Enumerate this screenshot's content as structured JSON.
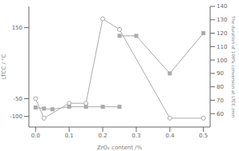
{
  "chart_data": {
    "type": "line",
    "xlabel": "ZrO₂ content /%",
    "ylabel": "LTCC / °C",
    "y2label": "The duration of 100% conversion at LTCC /min",
    "xlim": [
      -0.02,
      0.52
    ],
    "xticks": [
      {
        "value": 0.0,
        "label": "0.0"
      },
      {
        "value": 0.1,
        "label": "0.1"
      },
      {
        "value": 0.2,
        "label": "0.2"
      },
      {
        "value": 0.3,
        "label": "0.3"
      },
      {
        "value": 0.4,
        "label": "0.4"
      },
      {
        "value": 0.5,
        "label": "0.5"
      }
    ],
    "ylim": [
      -130,
      210
    ],
    "yticks": [
      -100,
      -50,
      150
    ],
    "y2lim": [
      50,
      140
    ],
    "y2ticks": [
      60,
      70,
      80,
      90,
      100,
      110,
      120,
      130,
      140
    ],
    "grid": false,
    "series": [
      {
        "color": "#aaaaaa",
        "marker": "circle",
        "axis": "y",
        "x": [
          0.0,
          0.025,
          0.1,
          0.15,
          0.2,
          0.25,
          0.4,
          0.5
        ],
        "values": [
          -50,
          -105,
          -63,
          -63,
          175,
          145,
          -105,
          -105
        ]
      },
      {
        "color": "#aaaaaa",
        "marker": "square",
        "axis": "y",
        "x": [
          0.0,
          0.025,
          0.05,
          0.1,
          0.15,
          0.2,
          0.25
        ],
        "values": [
          -75,
          -78,
          -80,
          -73,
          -73,
          -73,
          -73
        ]
      },
      {
        "color": "#aaaaaa",
        "marker": "square",
        "axis": "y2",
        "x": [
          0.25,
          0.3,
          0.4,
          0.5
        ],
        "values": [
          118,
          118,
          90,
          120
        ]
      }
    ]
  }
}
